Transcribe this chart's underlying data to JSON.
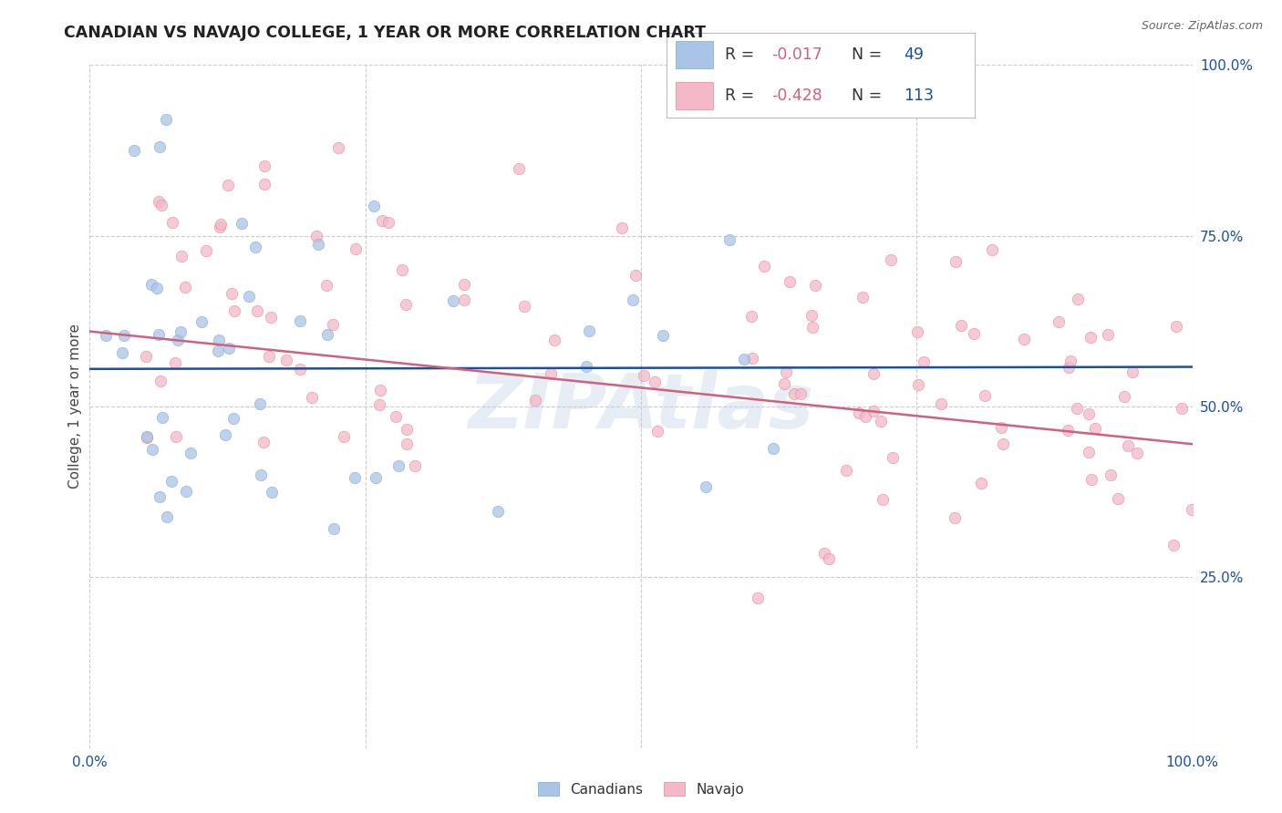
{
  "title": "CANADIAN VS NAVAJO COLLEGE, 1 YEAR OR MORE CORRELATION CHART",
  "source": "Source: ZipAtlas.com",
  "ylabel": "College, 1 year or more",
  "watermark": "ZIPAtlas",
  "canadians_color": "#aac4e8",
  "canadians_edge": "#7aaad0",
  "navajo_color": "#f4b8c8",
  "navajo_edge": "#e08898",
  "trend_canadian_color": "#1a4fa0",
  "trend_navajo_color": "#d06080",
  "grid_color": "#cccccc",
  "background_color": "#ffffff",
  "legend_bg": "#ffffff",
  "legend_edge": "#cccccc",
  "text_dark": "#222222",
  "text_blue": "#1a4fa0",
  "text_pink": "#d06080",
  "r_can": -0.017,
  "n_can": 49,
  "r_nav": -0.428,
  "n_nav": 113,
  "xmin": 0.0,
  "xmax": 1.0,
  "ymin": 0.0,
  "ymax": 1.0,
  "canadians_seed": 42,
  "navajo_seed": 99,
  "marker_size": 80,
  "marker_alpha": 0.75,
  "trend_lw": 1.8
}
